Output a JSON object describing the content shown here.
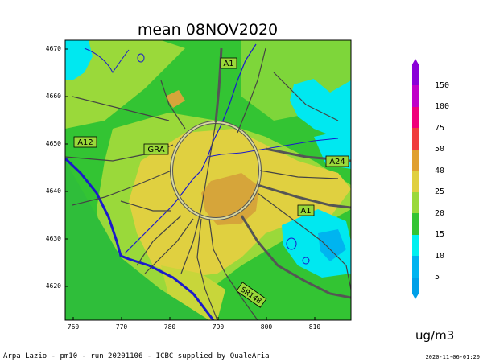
{
  "title": "mean 08NOV2020",
  "y_ticks": [
    "4670",
    "4660",
    "4650",
    "4640",
    "4630",
    "4620"
  ],
  "x_ticks": [
    "760",
    "770",
    "780",
    "790",
    "800",
    "810"
  ],
  "colorbar": {
    "labels": [
      "150",
      "100",
      "75",
      "50",
      "40",
      "25",
      "20",
      "15",
      "10",
      "5"
    ],
    "colors": [
      "#8a00d8",
      "#c000c8",
      "#f0007a",
      "#f03c3c",
      "#e0a030",
      "#e0d040",
      "#33c433",
      "#00f0f0",
      "#00b4f0"
    ]
  },
  "units": "ug/m3",
  "road_labels": {
    "a1_north": "A1",
    "a12": "A12",
    "gra": "GRA",
    "a24": "A24",
    "a1_south": "A1",
    "sr148": "SR148"
  },
  "footer": {
    "left": "Arpa Lazio - pm10 - run 20201106 - ICBC supplied by QualeAria",
    "right": "2020-11-06-01:20"
  }
}
